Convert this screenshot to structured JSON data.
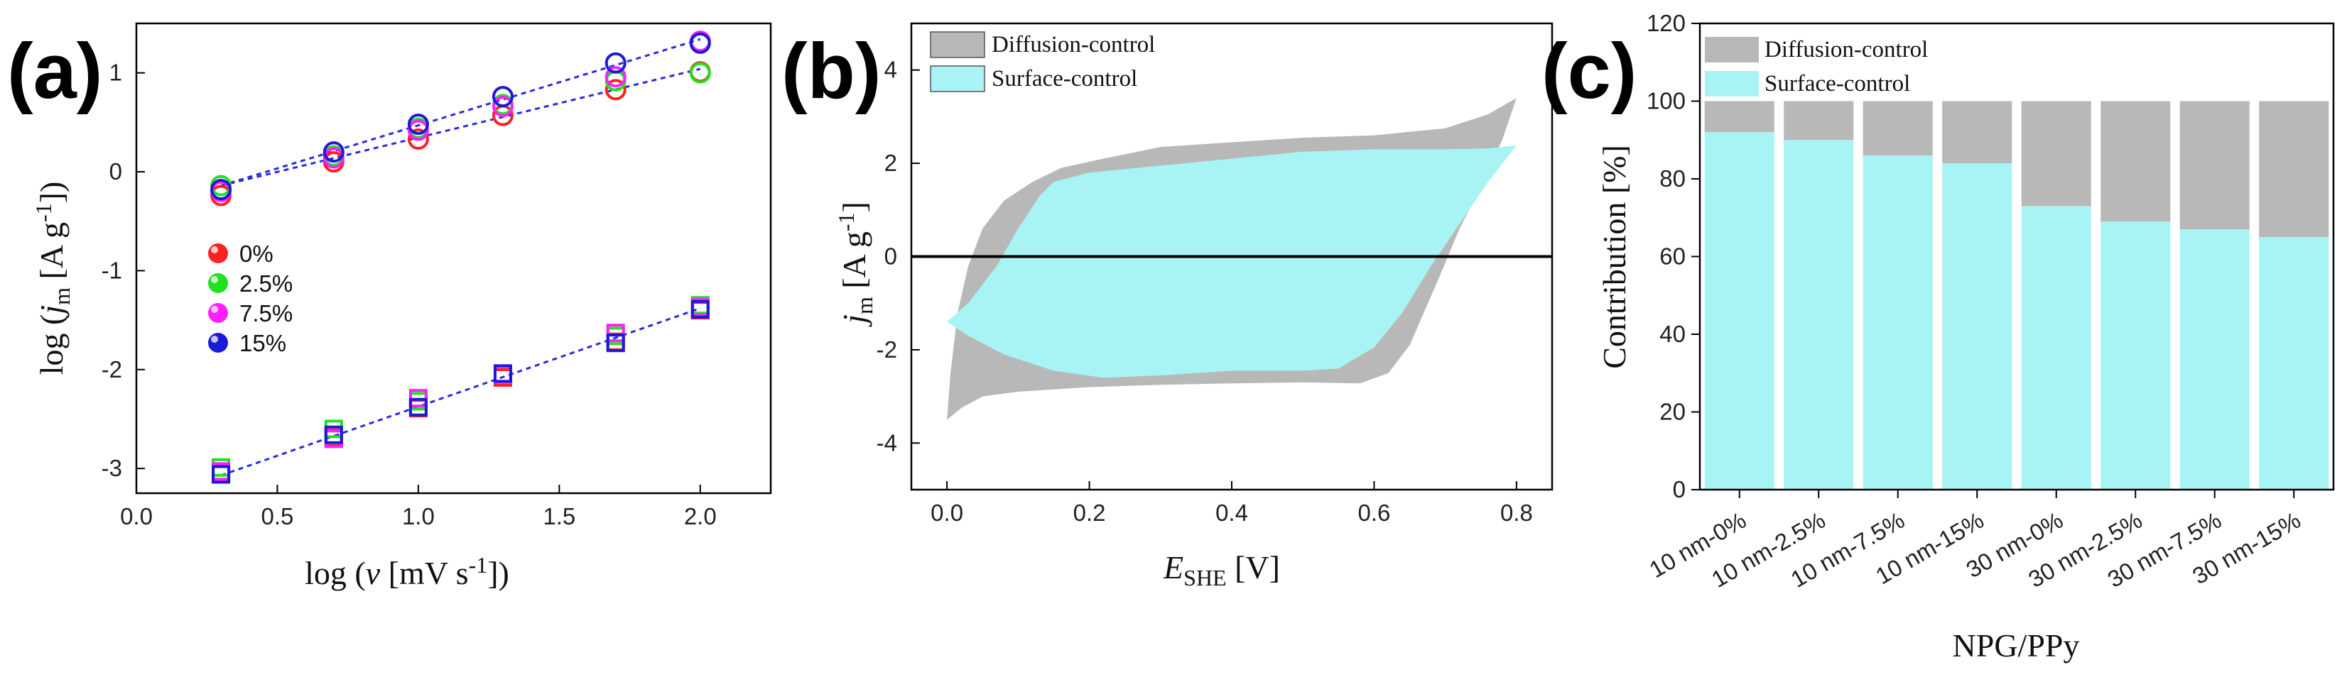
{
  "panels": {
    "a": {
      "label": "(a)"
    },
    "b": {
      "label": "(b)"
    },
    "c": {
      "label": "(c)"
    }
  },
  "colors": {
    "s0": "#ff2020",
    "s25": "#20e020",
    "s75": "#ff20ff",
    "s15": "#1a1ad8",
    "fit": "#2a2ae0",
    "diffusion": "#b8b8b8",
    "surface": "#a8f4f4"
  },
  "chart_data": [
    {
      "type": "scatter",
      "panel": "a",
      "title": "",
      "xlabel": "log (ν [mV s⁻¹])",
      "ylabel": "log (j_m [A g⁻¹])",
      "xlim": [
        0.0,
        2.25
      ],
      "ylim": [
        -3.25,
        1.5
      ],
      "xticks": [
        0.0,
        0.5,
        1.0,
        1.5,
        2.0
      ],
      "xtick_labels": [
        "0.0",
        "0.5",
        "1.0",
        "1.5",
        "2.0"
      ],
      "yticks": [
        -3,
        -2,
        -1,
        0,
        1
      ],
      "ytick_labels": [
        "-3",
        "-2",
        "-1",
        "0",
        "1"
      ],
      "x": [
        0.3,
        0.7,
        1.0,
        1.3,
        1.7,
        2.0
      ],
      "series": [
        {
          "name": "0%",
          "color_key": "s0",
          "circle": [
            -0.24,
            0.1,
            0.33,
            0.57,
            0.83,
            1.01
          ],
          "square": [
            -3.04,
            -2.69,
            -2.39,
            -2.08,
            -1.72,
            -1.4
          ]
        },
        {
          "name": "2.5%",
          "color_key": "s25",
          "circle": [
            -0.14,
            0.16,
            0.44,
            0.68,
            0.92,
            1.0
          ],
          "square": [
            -2.99,
            -2.6,
            -2.32,
            -2.05,
            -1.66,
            -1.35
          ]
        },
        {
          "name": "7.5%",
          "color_key": "s75",
          "circle": [
            -0.2,
            0.14,
            0.42,
            0.66,
            0.96,
            1.32
          ],
          "square": [
            -3.03,
            -2.7,
            -2.29,
            -2.05,
            -1.63,
            -1.37
          ]
        },
        {
          "name": "15%",
          "color_key": "s15",
          "circle": [
            -0.18,
            0.2,
            0.48,
            0.76,
            1.1,
            1.3
          ],
          "square": [
            -3.06,
            -2.66,
            -2.38,
            -2.04,
            -1.73,
            -1.39
          ]
        }
      ],
      "fit_lines": [
        {
          "x": [
            0.3,
            2.0
          ],
          "y": [
            -0.14,
            1.34
          ]
        },
        {
          "x": [
            0.3,
            2.0
          ],
          "y": [
            -0.14,
            1.04
          ]
        },
        {
          "x": [
            0.3,
            2.0
          ],
          "y": [
            -3.07,
            -1.38
          ]
        }
      ],
      "legend": [
        "0%",
        "2.5%",
        "7.5%",
        "15%"
      ],
      "legend_position": "middle-left"
    },
    {
      "type": "area",
      "panel": "b",
      "title": "",
      "xlabel": "E_SHE [V]",
      "ylabel": "j_m [A g⁻¹]",
      "xlim": [
        -0.05,
        0.85
      ],
      "ylim": [
        -5,
        5
      ],
      "xticks": [
        0.0,
        0.2,
        0.4,
        0.6,
        0.8
      ],
      "xtick_labels": [
        "0.0",
        "0.2",
        "0.4",
        "0.6",
        "0.8"
      ],
      "yticks": [
        -4,
        -2,
        0,
        2,
        4
      ],
      "ytick_labels": [
        "-4",
        "-2",
        "0",
        "2",
        "4"
      ],
      "zero_line": 0,
      "series": [
        {
          "name": "Diffusion-control",
          "color_key": "diffusion",
          "polygon": [
            [
              0.0,
              -3.5
            ],
            [
              0.005,
              -2.5
            ],
            [
              0.015,
              -1.2
            ],
            [
              0.03,
              -0.2
            ],
            [
              0.05,
              0.6
            ],
            [
              0.08,
              1.2
            ],
            [
              0.12,
              1.6
            ],
            [
              0.16,
              1.9
            ],
            [
              0.22,
              2.1
            ],
            [
              0.3,
              2.35
            ],
            [
              0.4,
              2.45
            ],
            [
              0.5,
              2.55
            ],
            [
              0.6,
              2.6
            ],
            [
              0.7,
              2.75
            ],
            [
              0.76,
              3.05
            ],
            [
              0.8,
              3.4
            ],
            [
              0.78,
              2.5
            ],
            [
              0.75,
              1.5
            ],
            [
              0.72,
              0.6
            ],
            [
              0.69,
              -0.5
            ],
            [
              0.67,
              -1.2
            ],
            [
              0.65,
              -1.9
            ],
            [
              0.62,
              -2.5
            ],
            [
              0.58,
              -2.72
            ],
            [
              0.5,
              -2.7
            ],
            [
              0.4,
              -2.72
            ],
            [
              0.3,
              -2.75
            ],
            [
              0.2,
              -2.8
            ],
            [
              0.1,
              -2.9
            ],
            [
              0.05,
              -3.0
            ],
            [
              0.02,
              -3.25
            ]
          ]
        },
        {
          "name": "Surface-control",
          "color_key": "surface",
          "polygon": [
            [
              0.0,
              -1.4
            ],
            [
              0.03,
              -1.0
            ],
            [
              0.07,
              -0.2
            ],
            [
              0.1,
              0.6
            ],
            [
              0.13,
              1.3
            ],
            [
              0.15,
              1.6
            ],
            [
              0.2,
              1.8
            ],
            [
              0.3,
              1.95
            ],
            [
              0.4,
              2.1
            ],
            [
              0.5,
              2.25
            ],
            [
              0.6,
              2.3
            ],
            [
              0.7,
              2.3
            ],
            [
              0.76,
              2.32
            ],
            [
              0.8,
              2.38
            ],
            [
              0.76,
              1.6
            ],
            [
              0.72,
              0.7
            ],
            [
              0.68,
              -0.2
            ],
            [
              0.64,
              -1.2
            ],
            [
              0.6,
              -1.95
            ],
            [
              0.55,
              -2.4
            ],
            [
              0.5,
              -2.45
            ],
            [
              0.4,
              -2.45
            ],
            [
              0.3,
              -2.55
            ],
            [
              0.22,
              -2.6
            ],
            [
              0.15,
              -2.45
            ],
            [
              0.08,
              -2.1
            ],
            [
              0.03,
              -1.7
            ]
          ]
        }
      ],
      "legend": [
        "Diffusion-control",
        "Surface-control"
      ],
      "legend_position": "top-left"
    },
    {
      "type": "bar",
      "panel": "c",
      "stacked": true,
      "title": "",
      "xlabel": "NPG/PPy",
      "ylabel": "Contribution [%]",
      "ylim": [
        0,
        120
      ],
      "yticks": [
        0,
        20,
        40,
        60,
        80,
        100,
        120
      ],
      "ytick_labels": [
        "0",
        "20",
        "40",
        "60",
        "80",
        "100",
        "120"
      ],
      "categories": [
        "10 nm-0%",
        "10 nm-2.5%",
        "10 nm-7.5%",
        "10 nm-15%",
        "30 nm-0%",
        "30 nm-2.5%",
        "30 nm-7.5%",
        "30 nm-15%"
      ],
      "series": [
        {
          "name": "Surface-control",
          "color_key": "surface",
          "values": [
            92,
            90,
            86,
            84,
            73,
            69,
            67,
            65
          ]
        },
        {
          "name": "Diffusion-control",
          "color_key": "diffusion",
          "values": [
            8,
            10,
            14,
            16,
            27,
            31,
            33,
            35
          ]
        }
      ],
      "legend": [
        "Diffusion-control",
        "Surface-control"
      ],
      "legend_position": "top-left"
    }
  ]
}
